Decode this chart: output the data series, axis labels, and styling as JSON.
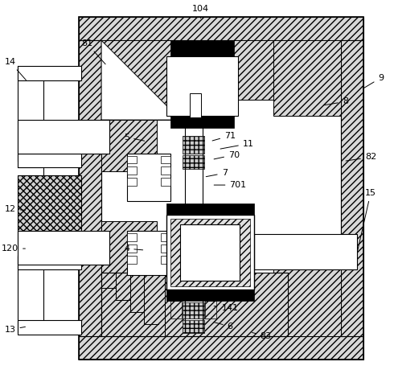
{
  "bg_color": "#ffffff",
  "line_color": "#000000",
  "fig_width": 4.9,
  "fig_height": 4.7,
  "dpi": 100
}
